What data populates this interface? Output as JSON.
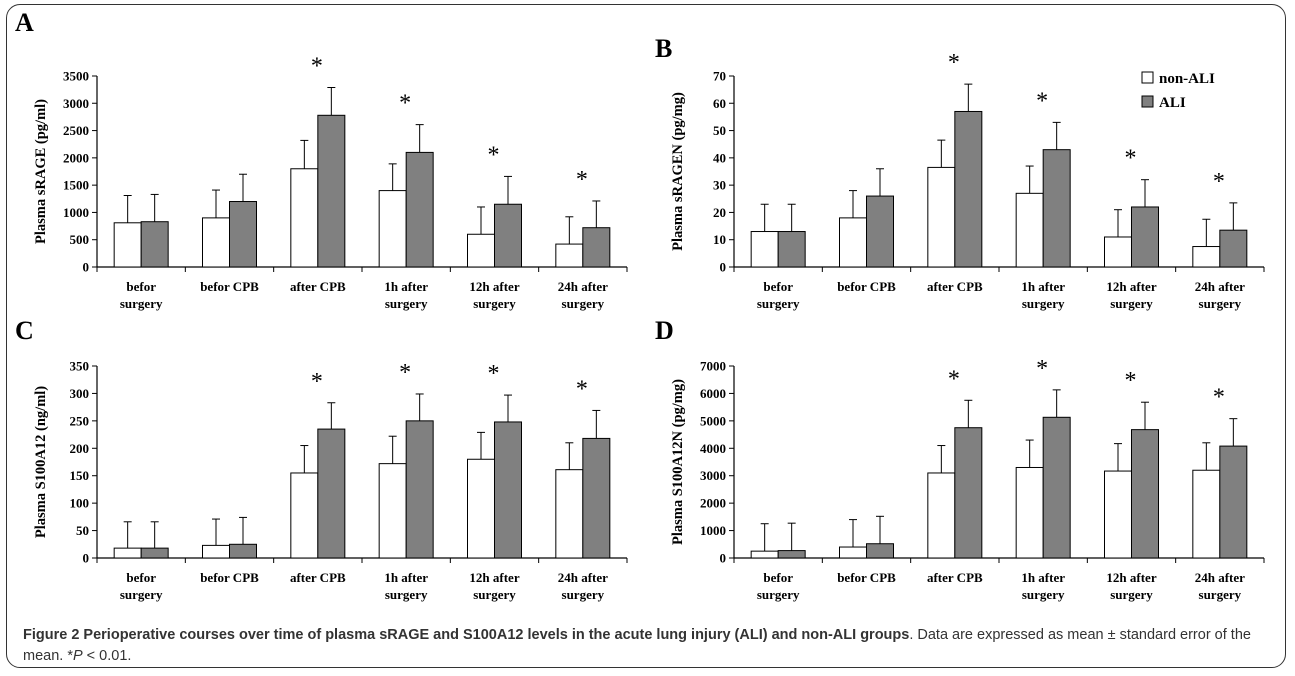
{
  "figure": {
    "caption_title": "Figure 2 Perioperative courses over time of plasma sRAGE and S100A12 levels in the acute lung injury (ALI) and non-ALI groups",
    "caption_text_1": ". Data are expressed as mean ± standard error of the mean. *",
    "caption_p": "P",
    "caption_text_2": " < 0.01."
  },
  "colors": {
    "non_ali": "#ffffff",
    "ali": "#808080",
    "stroke": "#000000"
  },
  "legend": {
    "items": [
      "non-ALI",
      "ALI"
    ]
  },
  "chart_data": [
    {
      "panel": "A",
      "type": "bar",
      "ylabel": "Plasma sRAGE (pg/ml)",
      "ylim": [
        0,
        3500
      ],
      "yticks": [
        0,
        500,
        1000,
        1500,
        2000,
        2500,
        3000,
        3500
      ],
      "categories": [
        [
          "befor",
          "surgery"
        ],
        [
          "befor CPB"
        ],
        [
          "after CPB"
        ],
        [
          "1h after",
          "surgery"
        ],
        [
          "12h after",
          "surgery"
        ],
        [
          "24h after",
          "surgery"
        ]
      ],
      "series": [
        {
          "name": "non-ALI",
          "values": [
            810,
            900,
            1800,
            1400,
            600,
            420
          ],
          "errors": [
            500,
            510,
            520,
            490,
            500,
            500
          ]
        },
        {
          "name": "ALI",
          "values": [
            830,
            1200,
            2780,
            2100,
            1150,
            720
          ],
          "errors": [
            500,
            500,
            510,
            510,
            510,
            490
          ]
        }
      ],
      "significant": [
        false,
        false,
        true,
        true,
        true,
        true
      ],
      "marker": "*"
    },
    {
      "panel": "B",
      "type": "bar",
      "ylabel": "Plasma sRAGEN (pg/mg)",
      "ylim": [
        0,
        70
      ],
      "yticks": [
        0,
        10,
        20,
        30,
        40,
        50,
        60,
        70
      ],
      "categories": [
        [
          "befor",
          "surgery"
        ],
        [
          "befor CPB"
        ],
        [
          "after CPB"
        ],
        [
          "1h after",
          "surgery"
        ],
        [
          "12h after",
          "surgery"
        ],
        [
          "24h after",
          "surgery"
        ]
      ],
      "series": [
        {
          "name": "non-ALI",
          "values": [
            13,
            18,
            36.5,
            27,
            11,
            7.5
          ],
          "errors": [
            10,
            10,
            10,
            10,
            10,
            10
          ]
        },
        {
          "name": "ALI",
          "values": [
            13,
            26,
            57,
            43,
            22,
            13.5
          ],
          "errors": [
            10,
            10,
            10,
            10,
            10,
            10
          ]
        }
      ],
      "significant": [
        false,
        false,
        true,
        true,
        true,
        true
      ],
      "marker": "*"
    },
    {
      "panel": "C",
      "type": "bar",
      "ylabel": "Plasma S100A12 (ng/ml)",
      "ylim": [
        0,
        350
      ],
      "yticks": [
        0,
        50,
        100,
        150,
        200,
        250,
        300,
        350
      ],
      "categories": [
        [
          "befor",
          "surgery"
        ],
        [
          "befor CPB"
        ],
        [
          "after CPB"
        ],
        [
          "1h after",
          "surgery"
        ],
        [
          "12h after",
          "surgery"
        ],
        [
          "24h after",
          "surgery"
        ]
      ],
      "series": [
        {
          "name": "non-ALI",
          "values": [
            18,
            23,
            155,
            172,
            180,
            161
          ],
          "errors": [
            48,
            48,
            50,
            50,
            49,
            49
          ]
        },
        {
          "name": "ALI",
          "values": [
            18,
            25,
            235,
            250,
            248,
            218
          ],
          "errors": [
            48,
            49,
            48,
            49,
            49,
            51
          ]
        }
      ],
      "significant": [
        false,
        false,
        true,
        true,
        true,
        true
      ],
      "marker": "*"
    },
    {
      "panel": "D",
      "type": "bar",
      "ylabel": "Plasma S100A12N (pg/mg)",
      "ylim": [
        0,
        7000
      ],
      "yticks": [
        0,
        1000,
        2000,
        3000,
        4000,
        5000,
        6000,
        7000
      ],
      "categories": [
        [
          "befor",
          "surgery"
        ],
        [
          "befor CPB"
        ],
        [
          "after CPB"
        ],
        [
          "1h after",
          "surgery"
        ],
        [
          "12h after",
          "surgery"
        ],
        [
          "24h after",
          "surgery"
        ]
      ],
      "series": [
        {
          "name": "non-ALI",
          "values": [
            250,
            400,
            3100,
            3300,
            3170,
            3200
          ],
          "errors": [
            1000,
            1000,
            1000,
            1000,
            1000,
            1000
          ]
        },
        {
          "name": "ALI",
          "values": [
            270,
            520,
            4750,
            5130,
            4680,
            4080
          ],
          "errors": [
            1000,
            1000,
            1000,
            1000,
            1000,
            1000
          ]
        }
      ],
      "significant": [
        false,
        false,
        true,
        true,
        true,
        true
      ],
      "marker": "*"
    }
  ]
}
